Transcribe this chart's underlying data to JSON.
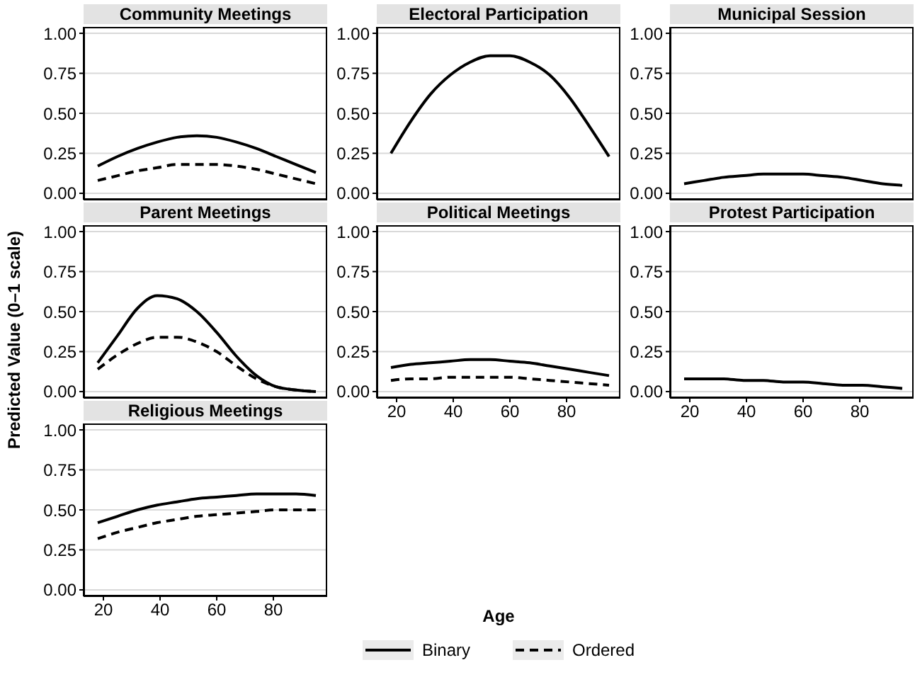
{
  "chart_data": [
    {
      "type": "line",
      "title": "Community Meetings",
      "ylabel": "Predicted Value (0–1 scale)",
      "legend": "bottom",
      "x": [
        18,
        25,
        32,
        39,
        46,
        53,
        60,
        67,
        74,
        81,
        88,
        95
      ],
      "xlim": [
        13,
        99
      ],
      "xticks": [
        20,
        40,
        60,
        80
      ],
      "ylim": [
        -0.04,
        1.04
      ],
      "yticks": [
        {
          "value": 0,
          "label": "0.00"
        },
        {
          "value": 0.25,
          "label": "0.25"
        },
        {
          "value": 0.5,
          "label": "0.50"
        },
        {
          "value": 0.75,
          "label": "0.75"
        },
        {
          "value": 1,
          "label": "1.00"
        }
      ],
      "grid": "y",
      "tick_labels": "y",
      "series": [
        {
          "name": "Binary",
          "color": "#000000",
          "line_style": "solid",
          "values": [
            0.17,
            0.23,
            0.28,
            0.32,
            0.35,
            0.36,
            0.35,
            0.32,
            0.28,
            0.23,
            0.18,
            0.13
          ]
        },
        {
          "name": "Ordered",
          "color": "#000000",
          "line_style": "dashed",
          "values": [
            0.08,
            0.11,
            0.14,
            0.16,
            0.18,
            0.18,
            0.18,
            0.17,
            0.15,
            0.12,
            0.09,
            0.06
          ]
        }
      ]
    },
    {
      "type": "line",
      "title": "Electoral Participation",
      "x": [
        18,
        25,
        32,
        39,
        46,
        53,
        60,
        67,
        74,
        81,
        88,
        95
      ],
      "xlim": [
        13,
        99
      ],
      "xticks": [
        20,
        40,
        60,
        80
      ],
      "ylim": [
        -0.04,
        1.04
      ],
      "yticks": [
        {
          "value": 0,
          "label": "0.00"
        },
        {
          "value": 0.25,
          "label": "0.25"
        },
        {
          "value": 0.5,
          "label": "0.50"
        },
        {
          "value": 0.75,
          "label": "0.75"
        },
        {
          "value": 1,
          "label": "1.00"
        }
      ],
      "grid": "y",
      "tick_labels": "y",
      "series": [
        {
          "color": "#000000",
          "line_style": "solid",
          "values": [
            0.25,
            0.45,
            0.62,
            0.74,
            0.82,
            0.86,
            0.86,
            0.82,
            0.74,
            0.6,
            0.42,
            0.23
          ]
        }
      ]
    },
    {
      "type": "line",
      "title": "Municipal Session",
      "x": [
        18,
        25,
        32,
        39,
        46,
        53,
        60,
        67,
        74,
        81,
        88,
        95
      ],
      "xlim": [
        13,
        99
      ],
      "xticks": [
        20,
        40,
        60,
        80
      ],
      "ylim": [
        -0.04,
        1.04
      ],
      "yticks": [
        {
          "value": 0,
          "label": "0.00"
        },
        {
          "value": 0.25,
          "label": "0.25"
        },
        {
          "value": 0.5,
          "label": "0.50"
        },
        {
          "value": 0.75,
          "label": "0.75"
        },
        {
          "value": 1,
          "label": "1.00"
        }
      ],
      "grid": "y",
      "tick_labels": "y",
      "series": [
        {
          "color": "#000000",
          "line_style": "solid",
          "values": [
            0.06,
            0.08,
            0.1,
            0.11,
            0.12,
            0.12,
            0.12,
            0.11,
            0.1,
            0.08,
            0.06,
            0.05
          ]
        }
      ]
    },
    {
      "type": "line",
      "title": "Parent Meetings",
      "x": [
        18,
        25,
        32,
        39,
        46,
        53,
        60,
        67,
        74,
        81,
        88,
        95
      ],
      "xlim": [
        13,
        99
      ],
      "xticks": [
        20,
        40,
        60,
        80
      ],
      "ylim": [
        -0.04,
        1.04
      ],
      "yticks": [
        {
          "value": 0,
          "label": "0.00"
        },
        {
          "value": 0.25,
          "label": "0.25"
        },
        {
          "value": 0.5,
          "label": "0.50"
        },
        {
          "value": 0.75,
          "label": "0.75"
        },
        {
          "value": 1,
          "label": "1.00"
        }
      ],
      "grid": "y",
      "tick_labels": "y",
      "series": [
        {
          "color": "#000000",
          "line_style": "solid",
          "values": [
            0.18,
            0.35,
            0.52,
            0.6,
            0.58,
            0.5,
            0.37,
            0.22,
            0.1,
            0.03,
            0.01,
            0
          ]
        },
        {
          "color": "#000000",
          "line_style": "dashed",
          "values": [
            0.14,
            0.23,
            0.3,
            0.34,
            0.34,
            0.31,
            0.25,
            0.16,
            0.08,
            0.03,
            0.01,
            0
          ]
        }
      ]
    },
    {
      "type": "line",
      "title": "Political Meetings",
      "xlabel": "Age",
      "x": [
        18,
        25,
        32,
        39,
        46,
        53,
        60,
        67,
        74,
        81,
        88,
        95
      ],
      "xlim": [
        13,
        99
      ],
      "xticks": [
        20,
        40,
        60,
        80
      ],
      "ylim": [
        -0.04,
        1.04
      ],
      "yticks": [
        {
          "value": 0,
          "label": "0.00"
        },
        {
          "value": 0.25,
          "label": "0.25"
        },
        {
          "value": 0.5,
          "label": "0.50"
        },
        {
          "value": 0.75,
          "label": "0.75"
        },
        {
          "value": 1,
          "label": "1.00"
        }
      ],
      "grid": "y",
      "series": [
        {
          "color": "#000000",
          "line_style": "solid",
          "values": [
            0.15,
            0.17,
            0.18,
            0.19,
            0.2,
            0.2,
            0.19,
            0.18,
            0.16,
            0.14,
            0.12,
            0.1
          ]
        },
        {
          "color": "#000000",
          "line_style": "dashed",
          "values": [
            0.07,
            0.08,
            0.08,
            0.09,
            0.09,
            0.09,
            0.09,
            0.08,
            0.07,
            0.06,
            0.05,
            0.04
          ]
        }
      ]
    },
    {
      "type": "line",
      "title": "Protest Participation",
      "x": [
        18,
        25,
        32,
        39,
        46,
        53,
        60,
        67,
        74,
        81,
        88,
        95
      ],
      "xlim": [
        13,
        99
      ],
      "xticks": [
        20,
        40,
        60,
        80
      ],
      "ylim": [
        -0.04,
        1.04
      ],
      "yticks": [
        {
          "value": 0,
          "label": "0.00"
        },
        {
          "value": 0.25,
          "label": "0.25"
        },
        {
          "value": 0.5,
          "label": "0.50"
        },
        {
          "value": 0.75,
          "label": "0.75"
        },
        {
          "value": 1,
          "label": "1.00"
        }
      ],
      "grid": "y",
      "series": [
        {
          "color": "#000000",
          "line_style": "solid",
          "values": [
            0.08,
            0.08,
            0.08,
            0.07,
            0.07,
            0.06,
            0.06,
            0.05,
            0.04,
            0.04,
            0.03,
            0.02
          ]
        }
      ]
    },
    {
      "type": "line",
      "title": "Religious Meetings",
      "x": [
        18,
        25,
        32,
        39,
        46,
        53,
        60,
        67,
        74,
        81,
        88,
        95
      ],
      "xlim": [
        13,
        99
      ],
      "xticks": [
        20,
        40,
        60,
        80
      ],
      "ylim": [
        -0.04,
        1.04
      ],
      "yticks": [
        {
          "value": 0,
          "label": "0.00"
        },
        {
          "value": 0.25,
          "label": "0.25"
        },
        {
          "value": 0.5,
          "label": "0.50"
        },
        {
          "value": 0.75,
          "label": "0.75"
        },
        {
          "value": 1,
          "label": "1.00"
        }
      ],
      "grid": "y",
      "series": [
        {
          "color": "#000000",
          "line_style": "solid",
          "values": [
            0.42,
            0.46,
            0.5,
            0.53,
            0.55,
            0.57,
            0.58,
            0.59,
            0.6,
            0.6,
            0.6,
            0.59
          ]
        },
        {
          "color": "#000000",
          "line_style": "dashed",
          "values": [
            0.32,
            0.36,
            0.39,
            0.42,
            0.44,
            0.46,
            0.47,
            0.48,
            0.49,
            0.5,
            0.5,
            0.5
          ]
        }
      ]
    }
  ]
}
